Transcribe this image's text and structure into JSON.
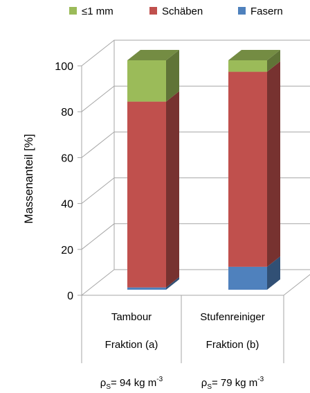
{
  "chart_data": {
    "type": "bar",
    "stacked": true,
    "three_d": true,
    "categories": [
      [
        "Tambour",
        "Fraktion (a)"
      ],
      [
        "Stufenreiniger",
        "Fraktion (b)"
      ]
    ],
    "category_notes": [
      {
        "rho": "ρ",
        "sub": "S",
        "eq": "= 94 kg m",
        "exp": "-3"
      },
      {
        "rho": "ρ",
        "sub": "S",
        "eq": "= 79 kg m",
        "exp": "-3"
      }
    ],
    "series": [
      {
        "name": "Fasern",
        "values": [
          1,
          10
        ],
        "color": "#4f81bd"
      },
      {
        "name": "Schäben",
        "values": [
          81,
          85
        ],
        "color": "#c0504d"
      },
      {
        "name": "≤1 mm",
        "values": [
          18,
          5
        ],
        "color": "#9bbb59"
      }
    ],
    "legend": {
      "position": "top",
      "order": [
        "≤1 mm",
        "Schäben",
        "Fasern"
      ]
    },
    "ylabel": "Massenanteil [%]",
    "xlabel": "",
    "ylim": [
      0,
      100
    ],
    "yticks": [
      0,
      20,
      40,
      60,
      80,
      100
    ],
    "grid": true
  }
}
